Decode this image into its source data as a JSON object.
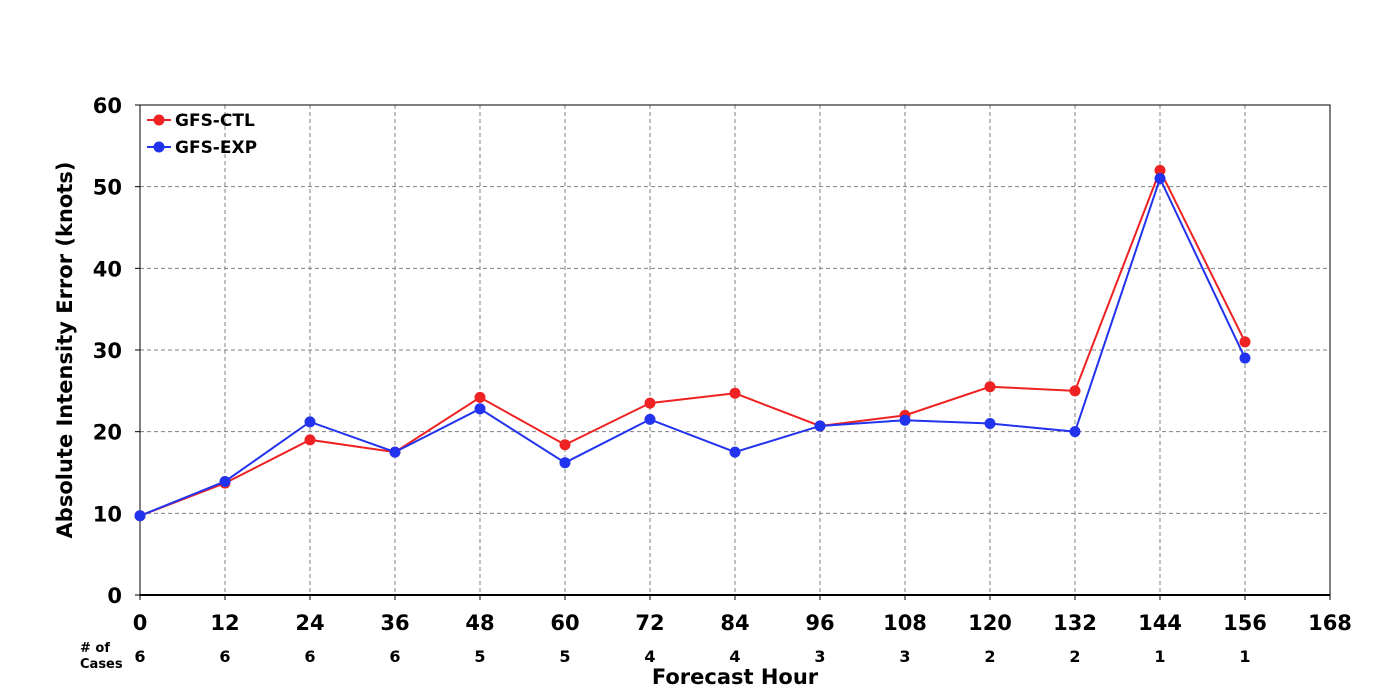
{
  "chart_data": {
    "type": "line",
    "xlabel": "Forecast Hour",
    "ylabel": "Absolute Intensity Error (knots)",
    "xlim": [
      0,
      168
    ],
    "ylim": [
      0,
      60
    ],
    "x_ticks": [
      "0",
      "12",
      "24",
      "36",
      "48",
      "60",
      "72",
      "84",
      "96",
      "108",
      "120",
      "132",
      "144",
      "156",
      "168"
    ],
    "y_ticks": [
      "0",
      "10",
      "20",
      "30",
      "40",
      "50",
      "60"
    ],
    "grid": true,
    "legend_position": "top-left",
    "cases_label": [
      "# of",
      "Cases"
    ],
    "cases": {
      "x": [
        0,
        12,
        24,
        36,
        48,
        60,
        72,
        84,
        96,
        108,
        120,
        132,
        144,
        156
      ],
      "counts": [
        "6",
        "6",
        "6",
        "6",
        "5",
        "5",
        "4",
        "4",
        "3",
        "3",
        "2",
        "2",
        "1",
        "1"
      ]
    },
    "x": [
      0,
      12,
      24,
      36,
      48,
      60,
      72,
      84,
      96,
      108,
      120,
      132,
      144,
      156
    ],
    "series": [
      {
        "name": "GFS-CTL",
        "color": "#ee2222",
        "values": [
          9.7,
          13.7,
          19.0,
          17.5,
          24.2,
          18.4,
          23.5,
          24.7,
          20.7,
          22.0,
          25.5,
          25.0,
          52.0,
          31.0
        ]
      },
      {
        "name": "GFS-EXP",
        "color": "#2233ee",
        "values": [
          9.7,
          13.9,
          21.2,
          17.5,
          22.8,
          16.2,
          21.5,
          17.5,
          20.7,
          21.4,
          21.0,
          20.0,
          51.0,
          29.0
        ]
      }
    ]
  }
}
